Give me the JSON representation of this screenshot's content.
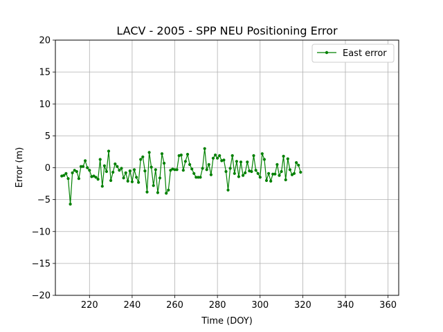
{
  "chart_data": {
    "type": "line",
    "title": "LACV - 2005 - SPP NEU Positioning Error",
    "xlabel": "Time (DOY)",
    "ylabel": "Error (m)",
    "xlim": [
      204,
      365
    ],
    "ylim": [
      -20,
      20
    ],
    "xticks": [
      220,
      240,
      260,
      280,
      300,
      320,
      340,
      360
    ],
    "yticks": [
      -20,
      -15,
      -10,
      -5,
      0,
      5,
      10,
      15,
      20
    ],
    "grid": true,
    "legend_position": "top-right",
    "series": [
      {
        "name": "East error",
        "color": "#008000",
        "marker": "dot",
        "x": [
          207,
          208,
          209,
          210,
          211,
          212,
          213,
          214,
          215,
          216,
          217,
          218,
          219,
          220,
          221,
          222,
          223,
          224,
          225,
          226,
          227,
          228,
          229,
          230,
          231,
          232,
          233,
          234,
          235,
          236,
          237,
          238,
          239,
          240,
          241,
          242,
          243,
          244,
          245,
          246,
          247,
          248,
          249,
          250,
          251,
          252,
          253,
          254,
          255,
          256,
          257,
          258,
          259,
          260,
          261,
          262,
          263,
          264,
          265,
          266,
          267,
          268,
          269,
          270,
          271,
          272,
          273,
          274,
          275,
          276,
          277,
          278,
          279,
          280,
          281,
          282,
          283,
          284,
          285,
          286,
          287,
          288,
          289,
          290,
          291,
          292,
          293,
          294,
          295,
          296,
          297,
          298,
          299,
          300,
          301,
          302,
          303,
          304,
          305,
          306,
          307,
          308,
          309,
          310,
          311,
          312,
          313,
          314,
          315,
          316,
          317,
          318,
          319
        ],
        "y": [
          -1.3,
          -1.2,
          -0.9,
          -1.7,
          -5.7,
          -0.8,
          -0.4,
          -0.6,
          -1.7,
          0.2,
          0.2,
          1.1,
          0.0,
          -0.4,
          -1.4,
          -1.3,
          -1.5,
          -1.8,
          1.3,
          -2.9,
          0.3,
          -0.6,
          2.6,
          -2.0,
          -0.7,
          0.6,
          0.2,
          -0.4,
          -0.1,
          -1.6,
          -0.8,
          -2.1,
          -0.5,
          -2.2,
          -0.3,
          -1.5,
          -2.3,
          1.3,
          1.7,
          -0.5,
          -3.8,
          2.4,
          0.1,
          -2.8,
          -0.3,
          -3.9,
          -1.6,
          2.2,
          0.7,
          -4.0,
          -3.5,
          -0.4,
          -0.2,
          -0.3,
          -0.3,
          1.9,
          2.0,
          -0.4,
          1.0,
          2.1,
          0.5,
          -0.2,
          -0.9,
          -1.5,
          -1.5,
          -1.5,
          -0.1,
          3.0,
          -0.3,
          0.5,
          -1.1,
          1.5,
          2.0,
          1.5,
          1.9,
          1.1,
          1.2,
          -0.6,
          -3.5,
          -0.1,
          1.9,
          -0.9,
          1.0,
          -1.4,
          0.9,
          -1.2,
          -0.8,
          0.9,
          -0.5,
          -0.6,
          1.9,
          -0.4,
          -0.9,
          -1.5,
          2.2,
          1.3,
          -2.0,
          -0.9,
          -2.1,
          -1.0,
          -1.0,
          0.5,
          -1.2,
          -0.6,
          1.8,
          -1.9,
          1.4,
          -0.3,
          -1.1,
          -0.9,
          0.8,
          0.4,
          -0.7
        ]
      }
    ]
  }
}
